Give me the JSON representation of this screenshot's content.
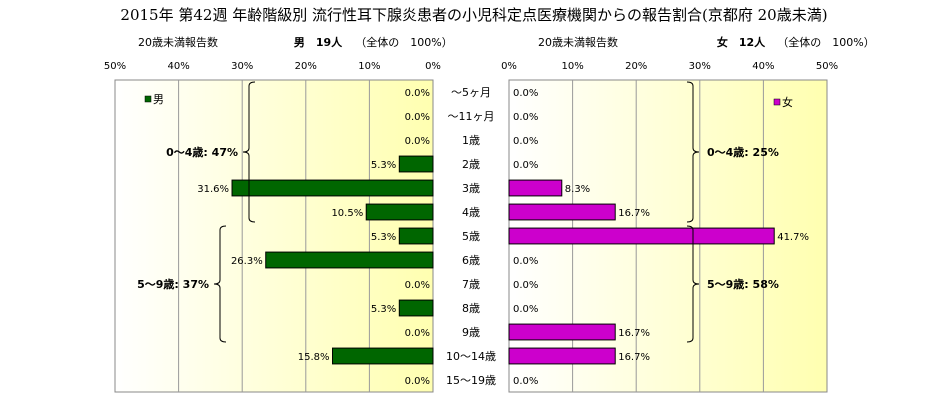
{
  "chart_data": {
    "type": "bar",
    "title": "2015年 第42週 年齢階級別 流行性耳下腺炎患者の小児科定点医療機関からの報告割合(京都府 20歳未満)",
    "categories": [
      "～5ヶ月",
      "～11ヶ月",
      "1歳",
      "2歳",
      "3歳",
      "4歳",
      "5歳",
      "6歳",
      "7歳",
      "8歳",
      "9歳",
      "10～14歳",
      "15～19歳"
    ],
    "xlim": [
      0,
      50
    ],
    "x_ticks": [
      "50%",
      "40%",
      "30%",
      "20%",
      "10%",
      "0%",
      "0%",
      "10%",
      "20%",
      "30%",
      "40%",
      "50%"
    ],
    "grid": true,
    "legend_placement": "top-left / top-right",
    "colors": {
      "male": "#006600",
      "female": "#cc00cc"
    },
    "series": [
      {
        "name": "男",
        "header_left": "20歳未満報告数",
        "header_total": "男　19人",
        "header_note": "（全体の　100%）",
        "values": [
          0.0,
          0.0,
          0.0,
          5.3,
          31.6,
          10.5,
          5.3,
          26.3,
          0.0,
          5.3,
          0.0,
          15.8,
          0.0
        ],
        "labels": [
          "0.0%",
          "0.0%",
          "0.0%",
          "5.3%",
          "31.6%",
          "10.5%",
          "5.3%",
          "26.3%",
          "0.0%",
          "5.3%",
          "0.0%",
          "15.8%",
          "0.0%"
        ],
        "groups": [
          {
            "label": "0～4歳: 47%",
            "from": 0,
            "to": 5
          },
          {
            "label": "5～9歳: 37%",
            "from": 6,
            "to": 10
          }
        ]
      },
      {
        "name": "女",
        "header_left": "20歳未満報告数",
        "header_total": "女　12人",
        "header_note": "（全体の　100%）",
        "values": [
          0.0,
          0.0,
          0.0,
          0.0,
          8.3,
          16.7,
          41.7,
          0.0,
          0.0,
          0.0,
          16.7,
          16.7,
          0.0
        ],
        "labels": [
          "0.0%",
          "0.0%",
          "0.0%",
          "0.0%",
          "8.3%",
          "16.7%",
          "41.7%",
          "0.0%",
          "0.0%",
          "0.0%",
          "16.7%",
          "16.7%",
          "0.0%"
        ],
        "groups": [
          {
            "label": "0～4歳: 25%",
            "from": 0,
            "to": 5
          },
          {
            "label": "5～9歳: 58%",
            "from": 6,
            "to": 10
          }
        ]
      }
    ]
  }
}
